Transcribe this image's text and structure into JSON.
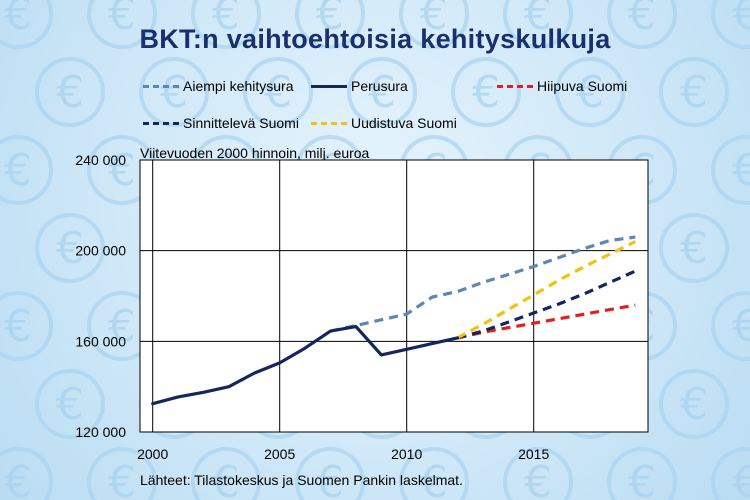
{
  "chart_data": {
    "type": "line",
    "title": "BKT:n vaihtoehtoisia kehityskulkuja",
    "subtitle": "Viitevuoden 2000 hinnoin, milj. euroa",
    "source": "Lähteet: Tilastokeskus ja Suomen Pankin laskelmat.",
    "xlim": [
      1999.5,
      2019.5
    ],
    "ylim": [
      120000,
      240000
    ],
    "x_ticks": [
      2000,
      2005,
      2010,
      2015
    ],
    "x_tick_labels": [
      "2000",
      "2005",
      "2010",
      "2015"
    ],
    "y_ticks": [
      120000,
      160000,
      200000,
      240000
    ],
    "y_tick_labels": [
      "120 000",
      "160 000",
      "200 000",
      "240 000"
    ],
    "grid": true,
    "legend_position": "top",
    "series": [
      {
        "name": "Aiempi kehitysura",
        "color": "#5b87b5",
        "dash": "dashed",
        "x": [
          2007,
          2008,
          2009,
          2010,
          2011,
          2012,
          2013,
          2014,
          2015,
          2016,
          2017,
          2018,
          2019
        ],
        "y": [
          164500,
          167000,
          169500,
          172000,
          179500,
          182000,
          186000,
          189500,
          193000,
          197000,
          201000,
          204500,
          206000
        ]
      },
      {
        "name": "Perusura",
        "color": "#14275c",
        "dash": "solid",
        "x": [
          2000,
          2001,
          2002,
          2003,
          2004,
          2005,
          2006,
          2007,
          2008,
          2009,
          2010,
          2011,
          2012
        ],
        "y": [
          132500,
          135500,
          137500,
          140000,
          146000,
          150500,
          157000,
          164500,
          166500,
          154000,
          156500,
          159000,
          161500
        ]
      },
      {
        "name": "Hiipuva Suomi",
        "color": "#e02020",
        "dash": "dashed",
        "x": [
          2012,
          2013,
          2014,
          2015,
          2016,
          2017,
          2018,
          2019
        ],
        "y": [
          161500,
          164000,
          166000,
          168000,
          170000,
          172000,
          174000,
          176000
        ]
      },
      {
        "name": "Sinnittelevä Suomi",
        "color": "#14275c",
        "dash": "dashed",
        "x": [
          2012,
          2013,
          2014,
          2015,
          2016,
          2017,
          2018,
          2019
        ],
        "y": [
          161500,
          164500,
          168500,
          172500,
          176500,
          181000,
          186000,
          191000
        ]
      },
      {
        "name": "Uudistuva Suomi",
        "color": "#f2c20f",
        "dash": "dashed",
        "x": [
          2012,
          2013,
          2014,
          2015,
          2016,
          2017,
          2018,
          2019
        ],
        "y": [
          161500,
          167500,
          174000,
          180500,
          187000,
          193000,
          198500,
          204000
        ]
      }
    ]
  }
}
